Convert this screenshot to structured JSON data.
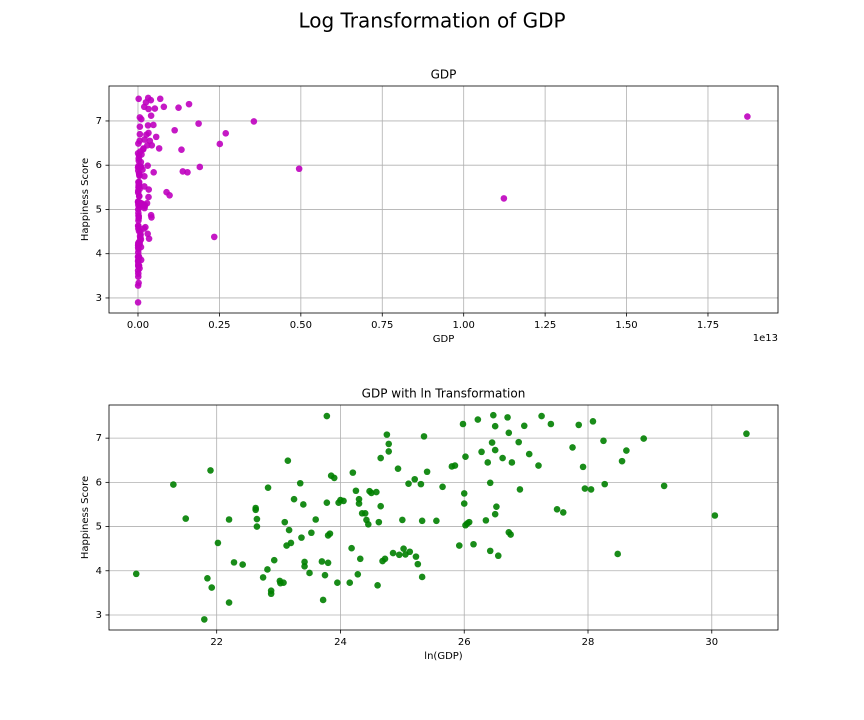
{
  "title": "Log Transformation of GDP",
  "chart_data": [
    {
      "type": "scatter",
      "title": "GDP",
      "xlabel": "GDP",
      "ylabel": "Happiness Score",
      "x_offset_label": "1e13",
      "color": "#bf00bf",
      "grid": true,
      "xlim": [
        -0.089,
        1.965
      ],
      "ylim": [
        2.66,
        7.79
      ],
      "xticks": [
        {
          "value": 0,
          "label": "0.00"
        },
        {
          "value": 0.25,
          "label": "0.25"
        },
        {
          "value": 0.5,
          "label": "0.50"
        },
        {
          "value": 0.75,
          "label": "0.75"
        },
        {
          "value": 1,
          "label": "1.00"
        },
        {
          "value": 1.25,
          "label": "1.25"
        },
        {
          "value": 1.5,
          "label": "1.50"
        },
        {
          "value": 1.75,
          "label": "1.75"
        }
      ],
      "yticks": [
        3,
        4,
        5,
        6,
        7
      ],
      "x": [
        0.0001,
        0.0002,
        0.0002,
        0.0003,
        0.0003,
        0.0003,
        0.0003,
        0.0004,
        0.0004,
        0.0004,
        0.0005,
        0.0005,
        0.0007,
        0.0007,
        0.0007,
        0.0007,
        0.0008,
        0.0008,
        0.0008,
        0.0009,
        0.0009,
        0.0009,
        0.001,
        0.0011,
        0.0011,
        0.0011,
        0.0011,
        0.0011,
        0.0012,
        0.0012,
        0.0013,
        0.0014,
        0.0014,
        0.0015,
        0.0015,
        0.0015,
        0.0016,
        0.0017,
        0.0018,
        0.002,
        0.002,
        0.0021,
        0.0021,
        0.0021,
        0.0022,
        0.0023,
        0.0022,
        0.0022,
        0.0024,
        0.0025,
        0.0026,
        0.0026,
        0.0028,
        0.0031,
        0.0032,
        0.0032,
        0.0034,
        0.0035,
        0.0036,
        0.0036,
        0.0037,
        0.0038,
        0.004,
        0.0041,
        0.0042,
        0.0043,
        0.0044,
        0.0047,
        0.0048,
        0.0049,
        0.005,
        0.005,
        0.0052,
        0.0054,
        0.0056,
        0.0058,
        0.0058,
        0.0062,
        0.0067,
        0.0069,
        0.0072,
        0.0073,
        0.0076,
        0.0079,
        0.0081,
        0.0088,
        0.0089,
        0.0091,
        0.0096,
        0.0098,
        0.0098,
        0.0101,
        0.0107,
        0.0124,
        0.0138,
        0.0161,
        0.0169,
        0.0181,
        0.0192,
        0.0196,
        0.0196,
        0.02,
        0.02,
        0.0206,
        0.0212,
        0.0227,
        0.0244,
        0.0259,
        0.0278,
        0.0286,
        0.0298,
        0.0298,
        0.0307,
        0.0313,
        0.0323,
        0.0323,
        0.0323,
        0.033,
        0.034,
        0.0364,
        0.0395,
        0.0403,
        0.0403,
        0.0415,
        0.0424,
        0.0473,
        0.0482,
        0.0517,
        0.0559,
        0.065,
        0.0683,
        0.0794,
        0.0877,
        0.097,
        0.1126,
        0.1245,
        0.1335,
        0.1375,
        0.152,
        0.1567,
        0.1861,
        0.1898,
        0.2342,
        0.2512,
        0.2694,
        0.3558,
        0.4948,
        1.1234,
        1.871
      ],
      "values": [
        3.93,
        5.95,
        5.18,
        2.9,
        3.83,
        6.27,
        3.62,
        4.63,
        3.28,
        5.16,
        4.19,
        4.14,
        5.38,
        5.17,
        5.0,
        5.42,
        3.85,
        4.03,
        5.88,
        3.48,
        3.55,
        4.24,
        3.77,
        3.72,
        3.73,
        5.1,
        4.57,
        6.49,
        4.92,
        4.63,
        5.62,
        5.98,
        4.75,
        5.5,
        4.1,
        4.2,
        3.95,
        4.86,
        5.16,
        4.21,
        3.34,
        3.9,
        5.54,
        7.5,
        4.18,
        6.15,
        4.84,
        4.8,
        6.1,
        3.73,
        5.54,
        5.6,
        5.58,
        3.73,
        4.51,
        6.22,
        5.81,
        3.92,
        5.52,
        5.62,
        4.27,
        5.3,
        5.3,
        5.15,
        5.05,
        5.8,
        5.76,
        5.78,
        3.67,
        5.1,
        5.46,
        6.55,
        4.22,
        4.27,
        7.08,
        6.87,
        6.7,
        4.4,
        6.31,
        4.36,
        5.15,
        4.5,
        4.37,
        5.97,
        4.43,
        6.07,
        4.32,
        4.15,
        5.96,
        5.13,
        3.86,
        7.04,
        6.24,
        5.13,
        5.9,
        6.36,
        6.38,
        4.57,
        7.32,
        5.75,
        5.52,
        6.58,
        5.03,
        5.07,
        5.1,
        4.6,
        7.42,
        6.69,
        5.14,
        6.45,
        5.99,
        4.45,
        6.9,
        7.52,
        6.73,
        7.27,
        5.28,
        5.45,
        4.34,
        6.55,
        7.47,
        7.12,
        4.87,
        4.82,
        6.45,
        6.91,
        5.84,
        7.28,
        6.64,
        6.38,
        7.5,
        7.32,
        5.39,
        5.32,
        6.79,
        7.3,
        6.35,
        5.86,
        5.84,
        7.38,
        6.94,
        5.96,
        4.38,
        6.48,
        6.72,
        6.99,
        5.92,
        5.25,
        7.1
      ]
    },
    {
      "type": "scatter",
      "title": "GDP with ln Transformation",
      "xlabel": "ln(GDP)",
      "ylabel": "Happiness Score",
      "color": "#008000",
      "grid": true,
      "xlim": [
        20.26,
        31.07
      ],
      "ylim": [
        2.66,
        7.75
      ],
      "xticks": [
        22,
        24,
        26,
        28,
        30
      ],
      "yticks": [
        3,
        4,
        5,
        6,
        7
      ],
      "x": [
        20.7,
        21.3,
        21.5,
        21.8,
        21.85,
        21.9,
        21.92,
        22.02,
        22.2,
        22.2,
        22.28,
        22.42,
        22.63,
        22.65,
        22.65,
        22.63,
        22.75,
        22.82,
        22.83,
        22.88,
        22.88,
        22.93,
        23.02,
        23.03,
        23.08,
        23.1,
        23.13,
        23.15,
        23.17,
        23.2,
        23.25,
        23.35,
        23.37,
        23.4,
        23.42,
        23.42,
        23.5,
        23.53,
        23.6,
        23.7,
        23.72,
        23.75,
        23.78,
        23.78,
        23.8,
        23.85,
        23.83,
        23.8,
        23.9,
        23.95,
        23.97,
        24.0,
        24.05,
        24.15,
        24.18,
        24.2,
        24.25,
        24.28,
        24.3,
        24.3,
        24.32,
        24.35,
        24.4,
        24.42,
        24.45,
        24.47,
        24.5,
        24.58,
        24.6,
        24.62,
        24.65,
        24.65,
        24.68,
        24.72,
        24.75,
        24.78,
        24.78,
        24.85,
        24.93,
        24.95,
        25.0,
        25.02,
        25.05,
        25.1,
        25.12,
        25.2,
        25.22,
        25.25,
        25.3,
        25.32,
        25.32,
        25.35,
        25.4,
        25.55,
        25.65,
        25.8,
        25.85,
        25.92,
        25.98,
        26.0,
        26.0,
        26.02,
        26.02,
        26.05,
        26.08,
        26.15,
        26.22,
        26.28,
        26.35,
        26.38,
        26.42,
        26.42,
        26.45,
        26.47,
        26.5,
        26.5,
        26.5,
        26.52,
        26.55,
        26.62,
        26.7,
        26.72,
        26.72,
        26.75,
        26.77,
        26.88,
        26.9,
        26.97,
        27.05,
        27.2,
        27.25,
        27.4,
        27.5,
        27.6,
        27.75,
        27.85,
        27.92,
        27.95,
        28.05,
        28.08,
        28.25,
        28.27,
        28.48,
        28.55,
        28.62,
        28.9,
        29.23,
        30.05,
        30.56
      ],
      "values": [
        3.93,
        5.95,
        5.18,
        2.9,
        3.83,
        6.27,
        3.62,
        4.63,
        3.28,
        5.16,
        4.19,
        4.14,
        5.38,
        5.17,
        5.0,
        5.42,
        3.85,
        4.03,
        5.88,
        3.48,
        3.55,
        4.24,
        3.77,
        3.72,
        3.73,
        5.1,
        4.57,
        6.49,
        4.92,
        4.63,
        5.62,
        5.98,
        4.75,
        5.5,
        4.1,
        4.2,
        3.95,
        4.86,
        5.16,
        4.21,
        3.34,
        3.9,
        5.54,
        7.5,
        4.18,
        6.15,
        4.84,
        4.8,
        6.1,
        3.73,
        5.54,
        5.6,
        5.58,
        3.73,
        4.51,
        6.22,
        5.81,
        3.92,
        5.52,
        5.62,
        4.27,
        5.3,
        5.3,
        5.15,
        5.05,
        5.8,
        5.76,
        5.78,
        3.67,
        5.1,
        5.46,
        6.55,
        4.22,
        4.27,
        7.08,
        6.87,
        6.7,
        4.4,
        6.31,
        4.36,
        5.15,
        4.5,
        4.37,
        5.97,
        4.43,
        6.07,
        4.32,
        4.15,
        5.96,
        5.13,
        3.86,
        7.04,
        6.24,
        5.13,
        5.9,
        6.36,
        6.38,
        4.57,
        7.32,
        5.75,
        5.52,
        6.58,
        5.03,
        5.07,
        5.1,
        4.6,
        7.42,
        6.69,
        5.14,
        6.45,
        5.99,
        4.45,
        6.9,
        7.52,
        6.73,
        7.27,
        5.28,
        5.45,
        4.34,
        6.55,
        7.47,
        7.12,
        4.87,
        4.82,
        6.45,
        6.91,
        5.84,
        7.28,
        6.64,
        6.38,
        7.5,
        7.32,
        5.39,
        5.32,
        6.79,
        7.3,
        6.35,
        5.86,
        5.84,
        7.38,
        6.94,
        5.96,
        4.38,
        6.48,
        6.72,
        6.99,
        5.92,
        5.25,
        7.1
      ]
    }
  ]
}
